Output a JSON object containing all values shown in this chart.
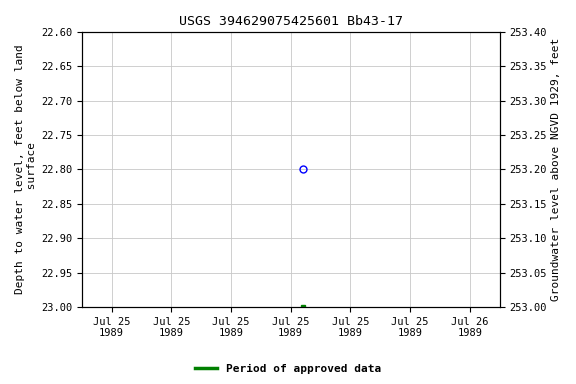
{
  "title": "USGS 394629075425601 Bb43-17",
  "left_ylabel": "Depth to water level, feet below land\n surface",
  "right_ylabel": "Groundwater level above NGVD 1929, feet",
  "ylim_left_top": 22.6,
  "ylim_left_bottom": 23.0,
  "ylim_right_top": 253.4,
  "ylim_right_bottom": 253.0,
  "left_yticks": [
    22.6,
    22.65,
    22.7,
    22.75,
    22.8,
    22.85,
    22.9,
    22.95,
    23.0
  ],
  "right_yticks": [
    253.4,
    253.35,
    253.3,
    253.25,
    253.2,
    253.15,
    253.1,
    253.05,
    253.0
  ],
  "x_tick_labels": [
    "Jul 25\n1989",
    "Jul 25\n1989",
    "Jul 25\n1989",
    "Jul 25\n1989",
    "Jul 25\n1989",
    "Jul 25\n1989",
    "Jul 26\n1989"
  ],
  "x_tick_positions": [
    0,
    1,
    2,
    3,
    4,
    5,
    6
  ],
  "data_point_x": 3.2,
  "data_point_y_depth": 22.8,
  "data_point_color": "#0000ff",
  "data_point_marker": "o",
  "data_point_fillstyle": "none",
  "data_point_markersize": 5,
  "approved_point_x": 3.2,
  "approved_point_y_depth": 23.0,
  "approved_point_color": "#008000",
  "approved_point_marker": "s",
  "approved_point_size": 3,
  "legend_label": "Period of approved data",
  "legend_color": "#008000",
  "background_color": "#ffffff",
  "grid_color": "#c8c8c8",
  "title_fontsize": 9.5,
  "axis_label_fontsize": 8,
  "tick_fontsize": 7.5
}
